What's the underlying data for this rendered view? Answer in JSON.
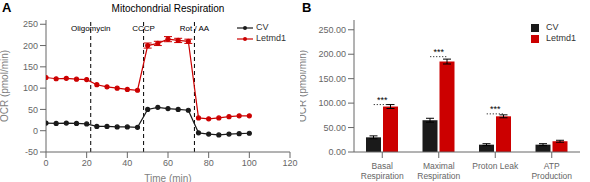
{
  "chart_data": [
    {
      "type": "line",
      "panel_label": "A",
      "title": "Mitochondrial Respiration",
      "x_label": "Time (min)",
      "y_label": "OCR (pmol/min)",
      "x": [
        0,
        5,
        10,
        15,
        20,
        25,
        30,
        35,
        40,
        45,
        50,
        55,
        60,
        65,
        70,
        75,
        80,
        85,
        90,
        95,
        100
      ],
      "series": [
        {
          "name": "CV",
          "color": "#1a1a1a",
          "marker": "circle",
          "values": [
            18,
            17,
            18,
            17,
            16,
            10,
            10,
            9,
            9,
            8,
            50,
            55,
            52,
            50,
            48,
            -5,
            -8,
            -10,
            -8,
            -7,
            -6
          ]
        },
        {
          "name": "Letmd1",
          "color": "#cc0000",
          "marker": "circle",
          "values": [
            125,
            122,
            123,
            121,
            120,
            108,
            103,
            100,
            97,
            95,
            200,
            205,
            215,
            212,
            210,
            30,
            28,
            30,
            33,
            35,
            35
          ],
          "errors": [
            null,
            null,
            null,
            null,
            null,
            null,
            null,
            null,
            null,
            null,
            6,
            5,
            6,
            5,
            5,
            null,
            null,
            null,
            null,
            null,
            null
          ]
        }
      ],
      "annotations": [
        {
          "x": 22,
          "text": "Oligomycin",
          "line_style": "dashed"
        },
        {
          "x": 48,
          "text": "CCCP",
          "line_style": "dashed"
        },
        {
          "x": 73,
          "text": "Rot / AA",
          "line_style": "dashed"
        }
      ],
      "xlim": [
        0,
        120
      ],
      "xticks": [
        0,
        20,
        40,
        60,
        80,
        100,
        120
      ],
      "ylim": [
        -50,
        260
      ],
      "yticks": [
        -50,
        0,
        50,
        100,
        150,
        200,
        250
      ],
      "legend": "upper right",
      "grid": false
    },
    {
      "type": "bar",
      "panel_label": "B",
      "y_label": "OCR (pmol/min)",
      "categories": [
        "Basal\nRespiration",
        "Maximal\nRespiration",
        "Proton Leak",
        "ATP\nProduction"
      ],
      "series": [
        {
          "name": "CV",
          "color": "#1a1a1a",
          "values": [
            30,
            65,
            15,
            15
          ],
          "errors": [
            3,
            4,
            2,
            2
          ]
        },
        {
          "name": "Letmd1",
          "color": "#cc0000",
          "values": [
            93,
            185,
            73,
            22
          ],
          "errors": [
            4,
            5,
            3,
            2
          ]
        }
      ],
      "annotations": [
        {
          "category_index": 0,
          "y": 97,
          "text": "***",
          "line_style": "dotted"
        },
        {
          "category_index": 1,
          "y": 195,
          "text": "***",
          "line_style": "dotted"
        },
        {
          "category_index": 2,
          "y": 78,
          "text": "***",
          "line_style": "dotted"
        }
      ],
      "ylim": [
        0,
        270
      ],
      "yticks": [
        {
          "value": 0,
          "label": "0.00"
        },
        {
          "value": 50,
          "label": "50.00"
        },
        {
          "value": 100,
          "label": "100.00"
        },
        {
          "value": 150,
          "label": "150.00"
        },
        {
          "value": 200,
          "label": "200.00"
        },
        {
          "value": 250,
          "label": "250.00"
        }
      ],
      "legend": "upper right",
      "grid": false
    }
  ]
}
